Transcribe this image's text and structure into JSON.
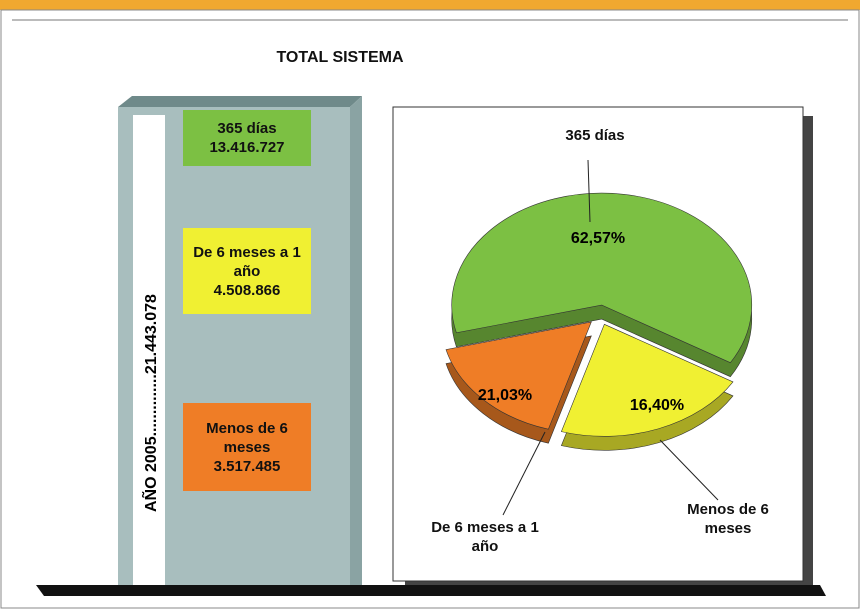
{
  "header": {
    "title": "TOTAL SISTEMA"
  },
  "column": {
    "label": "AÑO 2005..............21.443.078",
    "boxes": [
      {
        "title": "365 días",
        "value": "13.416.727",
        "color": "#7cc043"
      },
      {
        "title": "De 6 meses a 1 año",
        "value": "4.508.866",
        "color": "#f0f032"
      },
      {
        "title": "Menos de 6 meses",
        "value": "3.517.485",
        "color": "#ef7d26"
      }
    ]
  },
  "chart_data": {
    "type": "pie",
    "categories": [
      "365 días",
      "De 6 meses a 1 año",
      "Menos de 6 meses"
    ],
    "values": [
      62.57,
      21.03,
      16.4
    ],
    "value_labels": [
      "62,57%",
      "21,03%",
      "16,40%"
    ],
    "colors": [
      "#7cc043",
      "#f0f032",
      "#ef7d26"
    ]
  }
}
